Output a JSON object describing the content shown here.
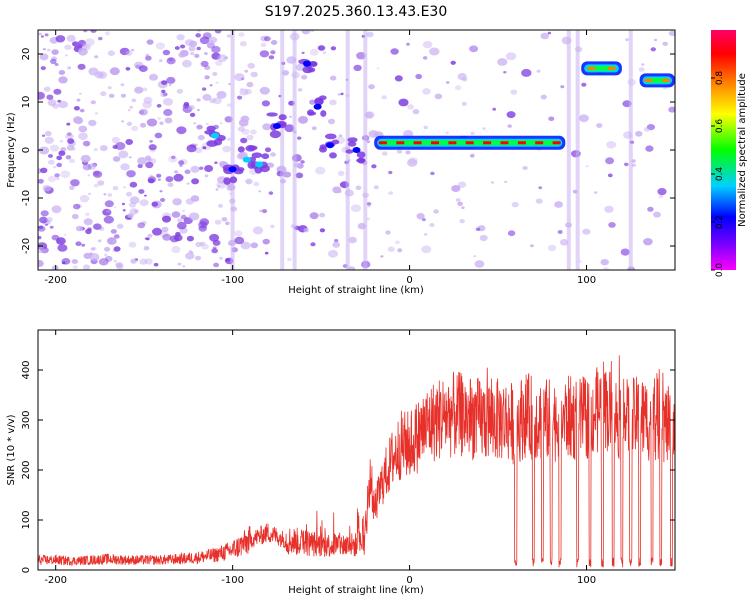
{
  "title": "S197.2025.360.13.43.E30",
  "colors": {
    "signal_line": "#e8302a",
    "speckle": "#7c3ae0",
    "speckle_light": "#c9b0f2"
  },
  "chart_data": [
    {
      "type": "heatmap",
      "name": "spectrogram",
      "xlabel": "Height of straight line (km)",
      "ylabel": "Frequency (Hz)",
      "xlim": [
        -210,
        150
      ],
      "ylim": [
        -25,
        25
      ],
      "xticks": [
        -200,
        -100,
        0,
        100
      ],
      "yticks": [
        -20,
        -10,
        0,
        10,
        20
      ],
      "colorbar": {
        "label": "Normalized spectral amplitude",
        "range": [
          0,
          1
        ],
        "ticks": [
          0.0,
          0.2,
          0.4,
          0.6,
          0.8
        ],
        "colors": [
          "#ff00ff",
          "#8000ff",
          "#0000ff",
          "#00d0ff",
          "#00ff00",
          "#ffff00",
          "#ff8000",
          "#ff0000",
          "#ff0066"
        ]
      },
      "band_segments": [
        {
          "x0": -20,
          "x1": 88,
          "freq": 1.5,
          "amp": 0.85
        },
        {
          "x0": 97,
          "x1": 120,
          "freq": 17,
          "amp": 0.8
        },
        {
          "x0": 130,
          "x1": 150,
          "freq": 14.5,
          "amp": 0.75
        }
      ],
      "feature_points": [
        {
          "x": -58,
          "freq": 18,
          "amp": 0.3
        },
        {
          "x": -52,
          "freq": 9,
          "amp": 0.3
        },
        {
          "x": -45,
          "freq": 1,
          "amp": 0.3
        },
        {
          "x": -30,
          "freq": 0,
          "amp": 0.3
        },
        {
          "x": -75,
          "freq": 5,
          "amp": 0.3
        },
        {
          "x": -85,
          "freq": -3,
          "amp": 0.35
        },
        {
          "x": -92,
          "freq": -2,
          "amp": 0.35
        },
        {
          "x": -100,
          "freq": -4,
          "amp": 0.3
        },
        {
          "x": -110,
          "freq": 3,
          "amp": 0.4
        }
      ]
    },
    {
      "type": "line",
      "name": "snr",
      "xlabel": "Height of straight line (km)",
      "ylabel": "SNR (10 * v/v)",
      "xlim": [
        -210,
        150
      ],
      "ylim": [
        0,
        480
      ],
      "xticks": [
        -200,
        -100,
        0,
        100
      ],
      "yticks": [
        0,
        100,
        200,
        300,
        400
      ],
      "series": [
        {
          "name": "SNR",
          "x": [
            -210,
            -200,
            -190,
            -180,
            -170,
            -160,
            -150,
            -140,
            -130,
            -120,
            -110,
            -100,
            -90,
            -80,
            -70,
            -60,
            -50,
            -40,
            -30,
            -25,
            -22,
            -20,
            -15,
            -10,
            -5,
            0,
            5,
            10,
            15,
            20,
            25,
            30,
            35,
            40,
            45,
            50,
            55,
            60,
            65,
            70,
            75,
            80,
            85,
            90,
            95,
            100,
            105,
            110,
            115,
            120,
            125,
            130,
            135,
            140,
            145,
            150
          ],
          "values": [
            20,
            20,
            18,
            20,
            22,
            20,
            20,
            20,
            22,
            25,
            30,
            40,
            60,
            75,
            60,
            55,
            50,
            50,
            50,
            60,
            190,
            120,
            180,
            220,
            250,
            250,
            270,
            290,
            300,
            310,
            310,
            310,
            305,
            300,
            300,
            300,
            300,
            290,
            310,
            305,
            300,
            300,
            300,
            305,
            300,
            305,
            315,
            330,
            310,
            300,
            300,
            305,
            300,
            300,
            290,
            280
          ],
          "dropouts": [
            60,
            70,
            75,
            80,
            85,
            95,
            102,
            109,
            115,
            120,
            125,
            130,
            137,
            142,
            148
          ]
        }
      ]
    }
  ]
}
